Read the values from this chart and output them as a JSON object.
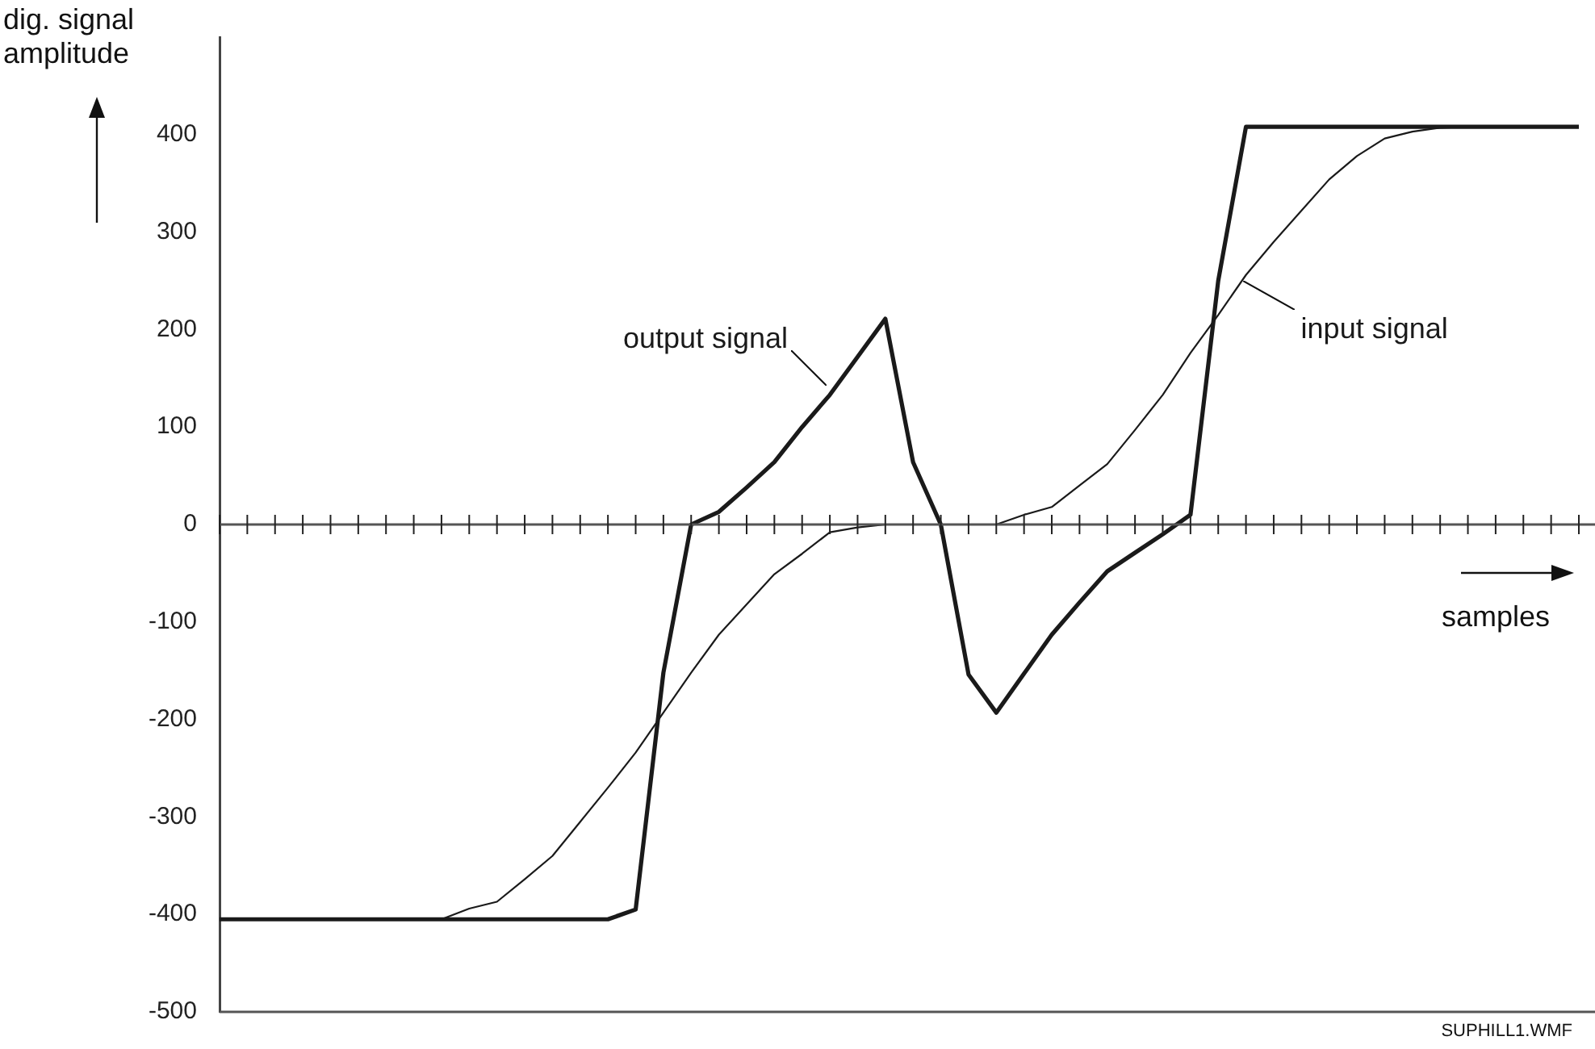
{
  "chart_data": {
    "type": "line",
    "xlabel": "samples",
    "ylabel": "dig. signal amplitude",
    "categories": [
      null,
      null,
      null,
      null,
      null,
      null,
      null,
      null,
      null,
      null,
      null,
      null,
      null,
      null,
      null,
      null,
      null,
      null,
      null,
      null,
      null,
      null,
      null,
      null,
      null,
      null,
      null,
      null,
      null,
      null,
      null,
      null,
      null,
      null,
      null,
      null,
      null,
      null,
      null,
      null,
      null,
      null,
      null,
      null,
      null,
      null,
      null,
      null,
      null,
      null
    ],
    "series": [
      {
        "name": "output signal",
        "color": "#1a1a1a",
        "values": [
          -405,
          -405,
          -405,
          -405,
          -405,
          -405,
          -405,
          -405,
          -405,
          -405,
          -405,
          -405,
          -405,
          -405,
          -405,
          -395,
          -152,
          0,
          13,
          38,
          64,
          100,
          133,
          172,
          211,
          64,
          0,
          -154,
          -193,
          -153,
          -113,
          -80,
          -48,
          -29,
          -10,
          10,
          250,
          408,
          408,
          408,
          408,
          408,
          408,
          408,
          408,
          408,
          408,
          408,
          408,
          408
        ]
      },
      {
        "name": "input signal",
        "color": "#1a1a1a",
        "values": [
          -405,
          -405,
          -405,
          -405,
          -405,
          -405,
          -405,
          -405,
          -405,
          -394,
          -387,
          -364,
          -340,
          -305,
          -270,
          -234,
          -193,
          -152,
          -113,
          -82,
          -51,
          -30,
          -8,
          -3,
          0,
          0,
          0,
          0,
          0,
          10,
          18,
          40,
          62,
          97,
          133,
          176,
          215,
          256,
          290,
          322,
          354,
          378,
          396,
          403,
          407,
          408,
          408,
          408,
          408,
          408
        ]
      }
    ],
    "ylim": [
      -500,
      500
    ],
    "yticks": [
      -500,
      -400,
      -300,
      -200,
      -100,
      0,
      100,
      200,
      300,
      400
    ],
    "ref_lines": [
      {
        "axis": "y",
        "value": 0
      }
    ],
    "grid": false,
    "legend": false,
    "tick_labels": "y",
    "marker": "none",
    "line_style": "solid",
    "annotations": [
      "SUPHILL1.WMF"
    ]
  }
}
